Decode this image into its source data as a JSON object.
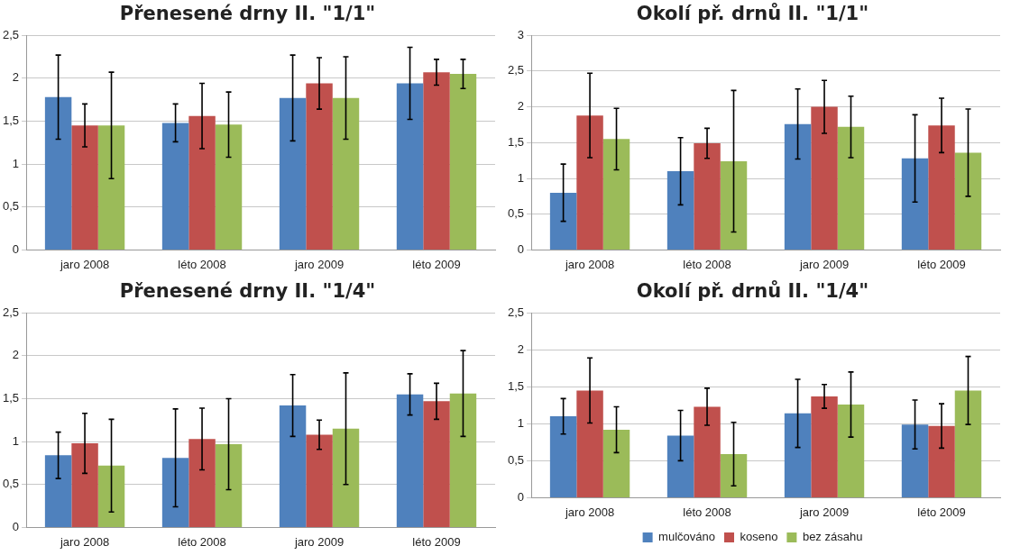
{
  "chart_data": [
    {
      "type": "bar",
      "title": "Přenesené drny II. \"1/1\"",
      "categories": [
        "jaro 2008",
        "léto 2008",
        "jaro 2009",
        "léto 2009"
      ],
      "series": [
        {
          "color": "#4f81bd",
          "values": [
            1.78,
            1.48,
            1.77,
            1.94
          ],
          "errors": [
            0.49,
            0.22,
            0.5,
            0.42
          ]
        },
        {
          "color": "#c0504d",
          "values": [
            1.45,
            1.56,
            1.94,
            2.07
          ],
          "errors": [
            0.25,
            0.38,
            0.3,
            0.15
          ]
        },
        {
          "color": "#9bbb59",
          "values": [
            1.45,
            1.46,
            1.77,
            2.05
          ],
          "errors": [
            0.62,
            0.38,
            0.48,
            0.17
          ]
        }
      ],
      "ylim": [
        0,
        2.5
      ],
      "yticks": [
        0,
        {
          "value": 0.5,
          "label": "0,5"
        },
        1,
        {
          "value": 1.5,
          "label": "1,5"
        },
        2,
        {
          "value": 2.5,
          "label": "2,5"
        }
      ],
      "grid": "y",
      "legend": false
    },
    {
      "type": "bar",
      "title": "Okolí př. drnů II. \"1/1\"",
      "categories": [
        "jaro 2008",
        "léto 2008",
        "jaro 2009",
        "léto 2009"
      ],
      "series": [
        {
          "color": "#4f81bd",
          "values": [
            0.8,
            1.1,
            1.76,
            1.28
          ],
          "errors": [
            0.4,
            0.47,
            0.49,
            0.61
          ]
        },
        {
          "color": "#c0504d",
          "values": [
            1.88,
            1.49,
            2.0,
            1.74
          ],
          "errors": [
            0.59,
            0.21,
            0.37,
            0.38
          ]
        },
        {
          "color": "#9bbb59",
          "values": [
            1.55,
            1.24,
            1.72,
            1.36
          ],
          "errors": [
            0.43,
            0.99,
            0.43,
            0.61
          ]
        }
      ],
      "ylim": [
        0,
        3
      ],
      "yticks": [
        0,
        {
          "value": 0.5,
          "label": "0,5"
        },
        1,
        {
          "value": 1.5,
          "label": "1,5"
        },
        2,
        {
          "value": 2.5,
          "label": "2,5"
        },
        3
      ],
      "grid": "y",
      "legend": false
    },
    {
      "type": "bar",
      "title": "Přenesené drny II. \"1/4\"",
      "categories": [
        "jaro 2008",
        "léto 2008",
        "jaro 2009",
        "léto 2009"
      ],
      "series": [
        {
          "color": "#4f81bd",
          "values": [
            0.84,
            0.81,
            1.42,
            1.55
          ],
          "errors": [
            0.27,
            0.57,
            0.36,
            0.24
          ]
        },
        {
          "color": "#c0504d",
          "values": [
            0.98,
            1.03,
            1.08,
            1.47
          ],
          "errors": [
            0.35,
            0.36,
            0.17,
            0.21
          ]
        },
        {
          "color": "#9bbb59",
          "values": [
            0.72,
            0.97,
            1.15,
            1.56
          ],
          "errors": [
            0.54,
            0.53,
            0.65,
            0.5
          ]
        }
      ],
      "ylim": [
        0,
        2.5
      ],
      "yticks": [
        0,
        {
          "value": 0.5,
          "label": "0,5"
        },
        1,
        {
          "value": 1.5,
          "label": "1,5"
        },
        2,
        {
          "value": 2.5,
          "label": "2,5"
        }
      ],
      "grid": "y",
      "legend": false
    },
    {
      "type": "bar",
      "title": "Okolí př. drnů II. \"1/4\"",
      "categories": [
        "jaro 2008",
        "léto 2008",
        "jaro 2009",
        "léto 2009"
      ],
      "series": [
        {
          "name": "mulčováno",
          "color": "#4f81bd",
          "values": [
            1.1,
            0.84,
            1.14,
            0.99
          ],
          "errors": [
            0.24,
            0.34,
            0.46,
            0.33
          ]
        },
        {
          "name": "koseno",
          "color": "#c0504d",
          "values": [
            1.45,
            1.23,
            1.37,
            0.97
          ],
          "errors": [
            0.44,
            0.25,
            0.16,
            0.3
          ]
        },
        {
          "name": "bez zásahu",
          "color": "#9bbb59",
          "values": [
            0.92,
            0.59,
            1.26,
            1.45
          ],
          "errors": [
            0.31,
            0.43,
            0.44,
            0.46
          ]
        }
      ],
      "ylim": [
        0,
        2.5
      ],
      "yticks": [
        0,
        {
          "value": 0.5,
          "label": "0,5"
        },
        1,
        {
          "value": 1.5,
          "label": "1,5"
        },
        2,
        {
          "value": 2.5,
          "label": "2,5"
        }
      ],
      "grid": "y",
      "legend": "bottom"
    }
  ]
}
